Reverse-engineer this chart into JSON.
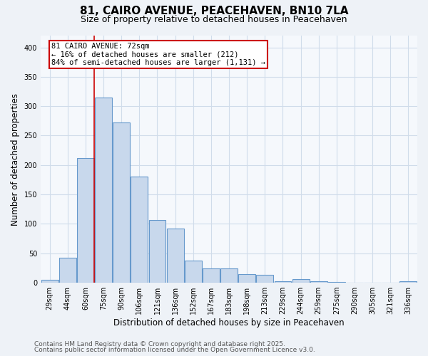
{
  "title": "81, CAIRO AVENUE, PEACEHAVEN, BN10 7LA",
  "subtitle": "Size of property relative to detached houses in Peacehaven",
  "xlabel": "Distribution of detached houses by size in Peacehaven",
  "ylabel": "Number of detached properties",
  "categories": [
    "29sqm",
    "44sqm",
    "60sqm",
    "75sqm",
    "90sqm",
    "106sqm",
    "121sqm",
    "136sqm",
    "152sqm",
    "167sqm",
    "183sqm",
    "198sqm",
    "213sqm",
    "229sqm",
    "244sqm",
    "259sqm",
    "275sqm",
    "290sqm",
    "305sqm",
    "321sqm",
    "336sqm"
  ],
  "values": [
    5,
    43,
    212,
    315,
    272,
    181,
    107,
    92,
    38,
    24,
    24,
    15,
    13,
    3,
    6,
    2,
    1,
    0,
    0,
    0,
    3
  ],
  "bar_color": "#c8d8ec",
  "bar_edge_color": "#6699cc",
  "marker_line_color": "#cc0000",
  "marker_bar_index": 2,
  "annotation_text": "81 CAIRO AVENUE: 72sqm\n← 16% of detached houses are smaller (212)\n84% of semi-detached houses are larger (1,131) →",
  "annotation_box_color": "#ffffff",
  "annotation_box_edge": "#cc0000",
  "ylim": [
    0,
    420
  ],
  "yticks": [
    0,
    50,
    100,
    150,
    200,
    250,
    300,
    350,
    400
  ],
  "footnote_line1": "Contains HM Land Registry data © Crown copyright and database right 2025.",
  "footnote_line2": "Contains public sector information licensed under the Open Government Licence v3.0.",
  "bg_color": "#eef2f7",
  "plot_bg_color": "#f5f8fc",
  "grid_color": "#d0dcea",
  "title_fontsize": 11,
  "subtitle_fontsize": 9,
  "axis_label_fontsize": 8.5,
  "tick_fontsize": 7,
  "annotation_fontsize": 7.5,
  "footnote_fontsize": 6.5
}
